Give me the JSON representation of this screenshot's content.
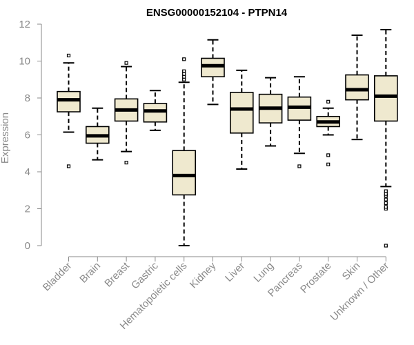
{
  "chart_data": {
    "type": "boxplot",
    "title": "ENSG00000152104 - PTPN14",
    "xlabel": "",
    "ylabel": "Expression",
    "ylim": [
      0,
      12
    ],
    "yticks": [
      0,
      2,
      4,
      6,
      8,
      10,
      12
    ],
    "categories": [
      "Bladder",
      "Brain",
      "Breast",
      "Gastric",
      "Hematopoietic cells",
      "Kidney",
      "Liver",
      "Lung",
      "Pancreas",
      "Prostate",
      "Skin",
      "Unknown / Other"
    ],
    "boxes": [
      {
        "whisker_low": 6.15,
        "q1": 7.25,
        "median": 7.9,
        "q3": 8.35,
        "whisker_high": 9.9,
        "outliers": [
          4.3,
          10.3
        ]
      },
      {
        "whisker_low": 4.65,
        "q1": 5.55,
        "median": 5.95,
        "q3": 6.45,
        "whisker_high": 7.45,
        "outliers": []
      },
      {
        "whisker_low": 5.1,
        "q1": 6.75,
        "median": 7.35,
        "q3": 7.95,
        "whisker_high": 9.7,
        "outliers": [
          4.5,
          9.9
        ]
      },
      {
        "whisker_low": 6.25,
        "q1": 6.7,
        "median": 7.3,
        "q3": 7.7,
        "whisker_high": 8.4,
        "outliers": []
      },
      {
        "whisker_low": 0.0,
        "q1": 2.75,
        "median": 3.8,
        "q3": 5.15,
        "whisker_high": 8.85,
        "outliers": [
          9.0,
          9.15,
          9.3,
          9.45,
          10.1
        ]
      },
      {
        "whisker_low": 7.65,
        "q1": 9.15,
        "median": 9.75,
        "q3": 10.15,
        "whisker_high": 11.15,
        "outliers": []
      },
      {
        "whisker_low": 4.15,
        "q1": 6.1,
        "median": 7.4,
        "q3": 8.3,
        "whisker_high": 9.5,
        "outliers": []
      },
      {
        "whisker_low": 5.4,
        "q1": 6.65,
        "median": 7.45,
        "q3": 8.2,
        "whisker_high": 9.1,
        "outliers": []
      },
      {
        "whisker_low": 5.0,
        "q1": 6.8,
        "median": 7.5,
        "q3": 8.05,
        "whisker_high": 9.15,
        "outliers": [
          4.3
        ]
      },
      {
        "whisker_low": 6.0,
        "q1": 6.45,
        "median": 6.7,
        "q3": 7.0,
        "whisker_high": 7.45,
        "outliers": [
          4.4,
          4.9,
          7.8
        ]
      },
      {
        "whisker_low": 5.75,
        "q1": 7.9,
        "median": 8.45,
        "q3": 9.25,
        "whisker_high": 11.4,
        "outliers": []
      },
      {
        "whisker_low": 3.2,
        "q1": 6.75,
        "median": 8.1,
        "q3": 9.2,
        "whisker_high": 11.7,
        "outliers": [
          0.0,
          2.0,
          2.1,
          2.3,
          2.5,
          2.7,
          2.8,
          2.95
        ]
      }
    ],
    "colors": {
      "box_fill": "#efe9cf",
      "box_stroke": "#000000",
      "median": "#000000",
      "axis": "#8a8a8a"
    }
  }
}
